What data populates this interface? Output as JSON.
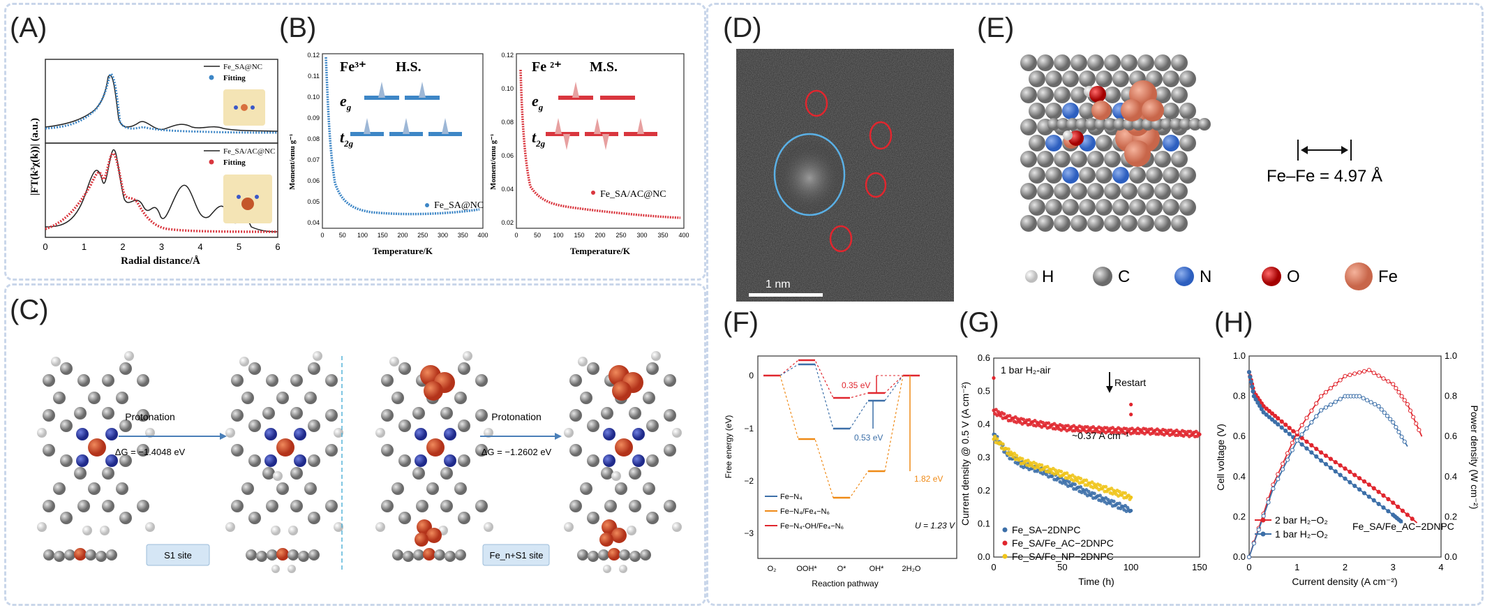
{
  "panel_labels": {
    "A": "(A)",
    "B": "(B)",
    "C": "(C)",
    "D": "(D)",
    "E": "(E)",
    "F": "(F)",
    "G": "(G)",
    "H": "(H)"
  },
  "panel_a": {
    "ylabel": "|FT(k³χ(k))| (a.u.)",
    "xlabel": "Radial distance/Å",
    "xticks": [
      "0",
      "1",
      "2",
      "3",
      "4",
      "5",
      "6"
    ],
    "top_legend": [
      "Fe_SA@NC",
      "Fitting"
    ],
    "bottom_legend": [
      "Fe_SA/AC@NC",
      "Fitting"
    ],
    "colors": {
      "top": "#3d86c6",
      "bottom": "#d9363e",
      "line": "#222222"
    }
  },
  "panel_b": {
    "ylabel": "Moment/emu g⁻¹",
    "xlabel": "Temperature/K",
    "left": {
      "yticks": [
        "0.04",
        "0.05",
        "0.06",
        "0.07",
        "0.08",
        "0.09",
        "0.10",
        "0.11",
        "0.12"
      ],
      "xticks": [
        "0",
        "50",
        "100",
        "150",
        "200",
        "250",
        "300",
        "350",
        "400"
      ],
      "ion": "Fe³⁺",
      "spin": "H.S.",
      "eg": "e",
      "eg_sub": "g",
      "t2g": "t",
      "t2g_sub": "2g",
      "sample": "Fe_SA@NC",
      "color": "#3d86c6"
    },
    "right": {
      "yticks": [
        "0.02",
        "0.04",
        "0.06",
        "0.08",
        "0.10",
        "0.12"
      ],
      "xticks": [
        "0",
        "50",
        "100",
        "150",
        "200",
        "250",
        "300",
        "350",
        "400"
      ],
      "ion": "Fe ²⁺",
      "spin": "M.S.",
      "eg": "e",
      "eg_sub": "g",
      "t2g": "t",
      "t2g_sub": "2g",
      "sample": "Fe_SA/AC@NC",
      "color": "#d9363e"
    }
  },
  "panel_c": {
    "step1": {
      "label": "Protonation",
      "dg": "ΔG = −1.4048 eV",
      "site": "S1 site"
    },
    "step2": {
      "label": "Protonation",
      "dg": "ΔG = −1.2602 eV",
      "site": "Fe_n+S1 site"
    }
  },
  "panel_d": {
    "scale": "1 nm"
  },
  "panel_e": {
    "distance": "Fe–Fe = 4.97 Å",
    "legend": [
      "H",
      "C",
      "N",
      "O",
      "Fe"
    ]
  },
  "panel_f": {
    "ylabel": "Free energy (eV)",
    "xlabel": "Reaction pathway",
    "yticks": [
      "0",
      "−1",
      "−2",
      "−3"
    ],
    "xticks": [
      "O₂",
      "OOH*",
      "O*",
      "OH*",
      "2H₂O"
    ],
    "annotations": [
      "0.35 eV",
      "0.53 eV",
      "1.82 eV"
    ],
    "legend": [
      "Fe−N₄",
      "Fe−N₄/Fe₄−N₆",
      "Fe−N₄-OH/Fe₄−N₆"
    ],
    "condition": "U = 1.23 V"
  },
  "panel_g": {
    "ylabel": "Current density @ 0.5 V (A cm⁻²)",
    "xlabel": "Time (h)",
    "yticks": [
      "0.0",
      "0.1",
      "0.2",
      "0.3",
      "0.4",
      "0.5",
      "0.6"
    ],
    "xticks": [
      "0",
      "50",
      "100",
      "150"
    ],
    "condition": "1 bar H₂-air",
    "restart": "Restart",
    "note": "~0.37 A cm⁻¹",
    "legend": [
      "Fe_SA−2DNPC",
      "Fe_SA/Fe_AC−2DNPC",
      "Fe_SA/Fe_NP−2DNPC"
    ]
  },
  "panel_h": {
    "ylabel_left": "Cell voltage (V)",
    "ylabel_right": "Power density (W cm⁻²)",
    "xlabel": "Current density (A cm⁻²)",
    "yticks": [
      "0.0",
      "0.2",
      "0.4",
      "0.6",
      "0.8",
      "1.0"
    ],
    "xticks": [
      "0",
      "1",
      "2",
      "3",
      "4"
    ],
    "legend": [
      "2 bar H₂−O₂",
      "1 bar H₂−O₂"
    ],
    "sample": "Fe_SA/Fe_AC−2DNPC"
  },
  "chart_data": [
    {
      "type": "line",
      "panel": "G",
      "xlabel": "Time (h)",
      "ylabel": "Current density @ 0.5 V (A cm⁻²)",
      "xlim": [
        0,
        150
      ],
      "ylim": [
        0,
        0.6
      ],
      "x": [
        0,
        10,
        20,
        35,
        50,
        70,
        100,
        110,
        130,
        150
      ],
      "series": [
        {
          "name": "Fe_SA−2DNPC",
          "color": "#3c6fa8",
          "values": [
            0.37,
            0.31,
            0.28,
            0.26,
            0.23,
            0.19,
            0.14,
            null,
            null,
            null
          ]
        },
        {
          "name": "Fe_SA/Fe_AC−2DNPC",
          "color": "#e0262e",
          "values": [
            0.44,
            0.42,
            0.41,
            0.4,
            0.39,
            0.385,
            0.38,
            0.38,
            0.375,
            0.37
          ]
        },
        {
          "name": "Fe_SA/Fe_NP−2DNPC",
          "color": "#f0c419",
          "values": [
            0.36,
            0.32,
            0.29,
            0.27,
            0.25,
            0.22,
            0.18,
            null,
            null,
            null
          ]
        }
      ]
    },
    {
      "type": "line",
      "panel": "H",
      "xlabel": "Current density (A cm⁻²)",
      "ylabel": "Cell voltage (V)",
      "xlim": [
        0,
        4
      ],
      "ylim": [
        0,
        1.0
      ],
      "series": [
        {
          "name": "2 bar H₂−O₂ voltage",
          "color": "#e0262e",
          "x": [
            0,
            0.1,
            0.3,
            0.6,
            1.0,
            1.5,
            2.0,
            2.5,
            3.0,
            3.5
          ],
          "values": [
            0.92,
            0.82,
            0.75,
            0.69,
            0.61,
            0.52,
            0.44,
            0.36,
            0.27,
            0.17
          ]
        },
        {
          "name": "1 bar H₂−O₂ voltage",
          "color": "#3c6fa8",
          "x": [
            0,
            0.1,
            0.3,
            0.6,
            1.0,
            1.5,
            2.0,
            2.5,
            3.0,
            3.2
          ],
          "values": [
            0.92,
            0.8,
            0.72,
            0.66,
            0.58,
            0.48,
            0.39,
            0.3,
            0.21,
            0.17
          ]
        },
        {
          "name": "2 bar H₂−O₂ power",
          "color": "#e0262e",
          "x": [
            0,
            0.5,
            1.0,
            1.5,
            2.0,
            2.5,
            3.0,
            3.3,
            3.6
          ],
          "values": [
            0,
            0.36,
            0.62,
            0.8,
            0.9,
            0.93,
            0.86,
            0.76,
            0.6
          ]
        },
        {
          "name": "1 bar H₂−O₂ power",
          "color": "#3c6fa8",
          "x": [
            0,
            0.5,
            1.0,
            1.5,
            2.0,
            2.3,
            2.7,
            3.0,
            3.3
          ],
          "values": [
            0,
            0.34,
            0.58,
            0.73,
            0.8,
            0.8,
            0.75,
            0.67,
            0.55
          ]
        }
      ]
    }
  ]
}
